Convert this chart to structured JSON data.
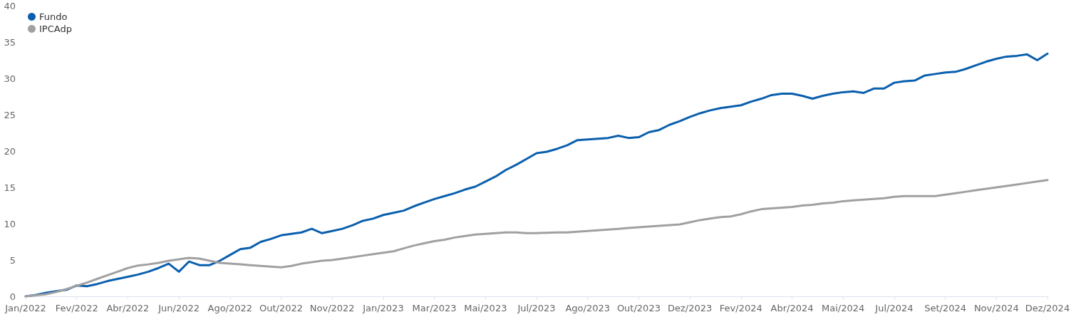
{
  "chart_data": {
    "type": "line",
    "legend": "top left",
    "grid": false,
    "marker": "none",
    "line_style": "solid",
    "categories": [
      "Jan/2022",
      null,
      null,
      null,
      null,
      "Fev/2022",
      null,
      null,
      null,
      null,
      "Abr/2022",
      null,
      null,
      null,
      null,
      "Jun/2022",
      null,
      null,
      null,
      null,
      "Ago/2022",
      null,
      null,
      null,
      null,
      "Out/2022",
      null,
      null,
      null,
      null,
      "Nov/2022",
      null,
      null,
      null,
      null,
      "Jan/2023",
      null,
      null,
      null,
      null,
      "Mar/2023",
      null,
      null,
      null,
      null,
      "Mai/2023",
      null,
      null,
      null,
      null,
      "Jul/2023",
      null,
      null,
      null,
      null,
      "Ago/2023",
      null,
      null,
      null,
      null,
      "Out/2023",
      null,
      null,
      null,
      null,
      "Dez/2023",
      null,
      null,
      null,
      null,
      "Fev/2024",
      null,
      null,
      null,
      null,
      "Abr/2024",
      null,
      null,
      null,
      null,
      "Mai/2024",
      null,
      null,
      null,
      null,
      "Jul/2024",
      null,
      null,
      null,
      null,
      "Set/2024",
      null,
      null,
      null,
      null,
      "Nov/2024",
      null,
      null,
      null,
      null,
      "Dez/2024"
    ],
    "ylim": [
      0,
      40
    ],
    "yticks": [
      0,
      5,
      10,
      15,
      20,
      25,
      30,
      35,
      40
    ],
    "series": [
      {
        "name": "Fundo",
        "color": "#0a5fad",
        "values": [
          0,
          0.2,
          0.5,
          0.7,
          0.9,
          1.5,
          1.4,
          1.7,
          2.1,
          2.4,
          2.7,
          3.0,
          3.4,
          3.9,
          4.5,
          3.4,
          4.8,
          4.3,
          4.3,
          4.9,
          5.7,
          6.5,
          6.7,
          7.5,
          7.9,
          8.4,
          8.6,
          8.8,
          9.3,
          8.7,
          9.0,
          9.3,
          9.8,
          10.4,
          10.7,
          11.2,
          11.5,
          11.8,
          12.4,
          12.9,
          13.4,
          13.8,
          14.2,
          14.7,
          15.1,
          15.8,
          16.5,
          17.4,
          18.1,
          18.9,
          19.7,
          19.9,
          20.3,
          20.8,
          21.5,
          21.6,
          21.7,
          21.8,
          22.1,
          21.8,
          21.9,
          22.6,
          22.9,
          23.6,
          24.1,
          24.7,
          25.2,
          25.6,
          25.9,
          26.1,
          26.3,
          26.8,
          27.2,
          27.7,
          27.9,
          27.9,
          27.6,
          27.2,
          27.6,
          27.9,
          28.1,
          28.2,
          28.0,
          28.6,
          28.6,
          29.4,
          29.6,
          29.7,
          30.4,
          30.6,
          30.8,
          30.9,
          31.3,
          31.8,
          32.3,
          32.7,
          33.0,
          33.1,
          33.3,
          32.5,
          33.4
        ]
      },
      {
        "name": "IPCAdp",
        "color": "#a0a0a0",
        "values": [
          0,
          0.15,
          0.3,
          0.6,
          1.0,
          1.45,
          1.9,
          2.4,
          2.9,
          3.4,
          3.9,
          4.25,
          4.4,
          4.6,
          4.9,
          5.1,
          5.3,
          5.2,
          4.9,
          4.6,
          4.5,
          4.4,
          4.3,
          4.2,
          4.1,
          4.0,
          4.2,
          4.5,
          4.7,
          4.9,
          5.0,
          5.2,
          5.4,
          5.6,
          5.8,
          6.0,
          6.2,
          6.6,
          7.0,
          7.3,
          7.6,
          7.8,
          8.1,
          8.3,
          8.5,
          8.6,
          8.7,
          8.8,
          8.8,
          8.7,
          8.7,
          8.75,
          8.8,
          8.8,
          8.9,
          9.0,
          9.1,
          9.2,
          9.3,
          9.4,
          9.5,
          9.6,
          9.7,
          9.8,
          9.9,
          10.2,
          10.5,
          10.7,
          10.9,
          11.0,
          11.3,
          11.7,
          12.0,
          12.1,
          12.2,
          12.3,
          12.5,
          12.6,
          12.8,
          12.9,
          13.1,
          13.2,
          13.3,
          13.4,
          13.5,
          13.7,
          13.8,
          13.8,
          13.8,
          13.8,
          14.0,
          14.2,
          14.4,
          14.6,
          14.8,
          15.0,
          15.2,
          15.4,
          15.6,
          15.8,
          16.0
        ]
      }
    ]
  }
}
